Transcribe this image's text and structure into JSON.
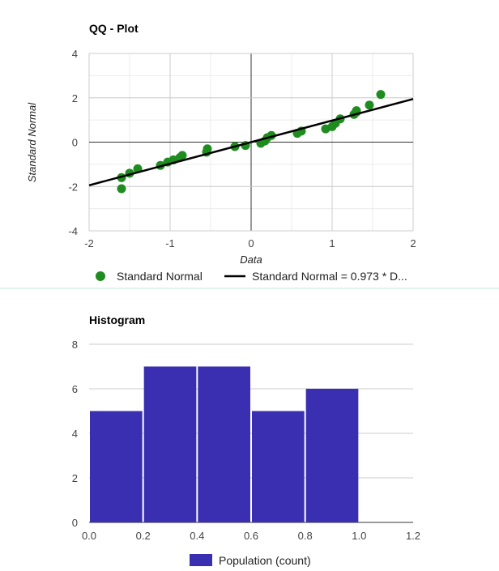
{
  "colors": {
    "points": "#1e8c1e",
    "trendline": "#000000",
    "bars": "#3a2fb0",
    "separator": "#bfe8d9",
    "grid": "#cccccc",
    "minor_grid": "#ebebeb",
    "axis_zero": "#333333"
  },
  "chart_data": [
    {
      "type": "scatter",
      "title": "QQ - Plot",
      "xlabel": "Data",
      "ylabel": "Standard Normal",
      "xlim": [
        -2,
        2
      ],
      "ylim": [
        -4,
        4
      ],
      "x_ticks": [
        "-2",
        "-1",
        "0",
        "1",
        "2"
      ],
      "y_ticks": [
        "-4",
        "-2",
        "0",
        "2",
        "4"
      ],
      "grid": true,
      "legend_position": "bottom",
      "series": [
        {
          "name": "Standard Normal",
          "points": [
            [
              -1.6,
              -2.1
            ],
            [
              -1.6,
              -1.6
            ],
            [
              -1.5,
              -1.4
            ],
            [
              -1.4,
              -1.2
            ],
            [
              -1.12,
              -1.05
            ],
            [
              -1.03,
              -0.9
            ],
            [
              -0.96,
              -0.8
            ],
            [
              -0.85,
              -0.6
            ],
            [
              -0.88,
              -0.7
            ],
            [
              -0.55,
              -0.45
            ],
            [
              -0.54,
              -0.3
            ],
            [
              -0.2,
              -0.2
            ],
            [
              -0.07,
              -0.15
            ],
            [
              0.12,
              -0.05
            ],
            [
              0.17,
              0.05
            ],
            [
              0.2,
              0.2
            ],
            [
              0.25,
              0.3
            ],
            [
              0.57,
              0.4
            ],
            [
              0.62,
              0.5
            ],
            [
              0.92,
              0.6
            ],
            [
              1.0,
              0.7
            ],
            [
              1.04,
              0.85
            ],
            [
              1.1,
              1.05
            ],
            [
              1.27,
              1.25
            ],
            [
              1.3,
              1.35
            ],
            [
              1.3,
              1.42
            ],
            [
              1.46,
              1.67
            ],
            [
              1.6,
              2.15
            ]
          ]
        }
      ],
      "trendline": {
        "name": "Standard Normal = 0.973 * D...",
        "slope": 0.973,
        "intercept": 0.0
      }
    },
    {
      "type": "bar",
      "title": "Histogram",
      "xlim": [
        0.0,
        1.2
      ],
      "ylim": [
        0,
        8
      ],
      "x_ticks": [
        "0.0",
        "0.2",
        "0.4",
        "0.6",
        "0.8",
        "1.0",
        "1.2"
      ],
      "y_ticks": [
        "0",
        "2",
        "4",
        "6",
        "8"
      ],
      "grid": true,
      "legend_position": "bottom",
      "bins": [
        {
          "start": 0.0,
          "end": 0.2,
          "value": 5
        },
        {
          "start": 0.2,
          "end": 0.4,
          "value": 7
        },
        {
          "start": 0.4,
          "end": 0.6,
          "value": 7
        },
        {
          "start": 0.6,
          "end": 0.8,
          "value": 5
        },
        {
          "start": 0.8,
          "end": 1.0,
          "value": 6
        }
      ],
      "series_name": "Population (count)"
    }
  ]
}
